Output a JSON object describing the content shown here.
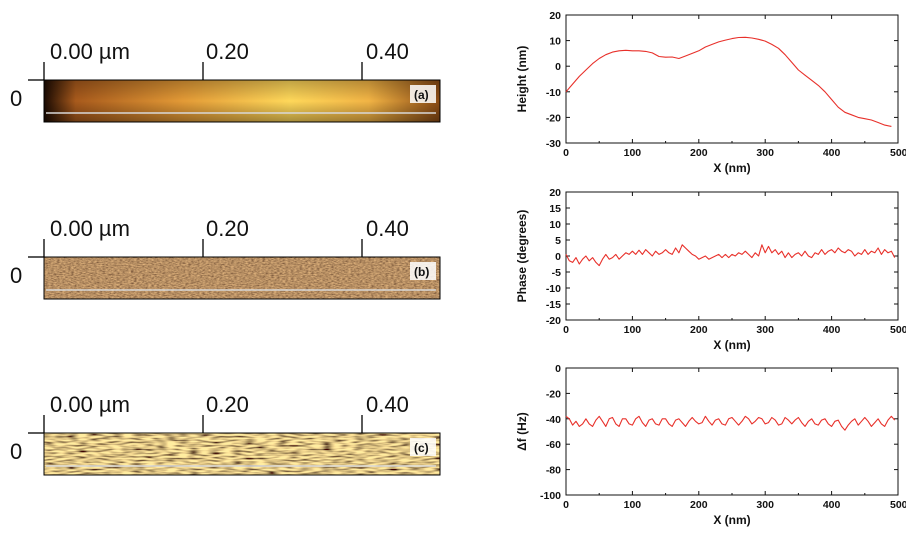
{
  "afm_images": [
    {
      "scale_labels": [
        "0.00 µm",
        "0.20",
        "0.40"
      ],
      "y_label": "0",
      "panel_label": "(a)",
      "colors": [
        "#7a3b0e",
        "#d88b2a",
        "#ffd667"
      ]
    },
    {
      "scale_labels": [
        "0.00 µm",
        "0.20",
        "0.40"
      ],
      "y_label": "0",
      "panel_label": "(b)",
      "colors": [
        "#3a1804",
        "#8a4d1a",
        "#d79a4d"
      ]
    },
    {
      "scale_labels": [
        "0.00 µm",
        "0.20",
        "0.40"
      ],
      "y_label": "0",
      "panel_label": "(c)",
      "colors": [
        "#4a2307",
        "#b3731e",
        "#ffe07a"
      ]
    }
  ],
  "chart_data": [
    {
      "type": "line",
      "xlabel": "X (nm)",
      "ylabel": "Height (nm)",
      "xlim": [
        0,
        500
      ],
      "ylim": [
        -30,
        20
      ],
      "xticks": [
        0,
        100,
        200,
        300,
        400,
        500
      ],
      "xtick_labels": [
        "0",
        "100",
        "200",
        "300",
        "400",
        "500"
      ],
      "yticks": [
        -30,
        -20,
        -10,
        0,
        10,
        20
      ],
      "ytick_labels": [
        "-30",
        "-20",
        "-10",
        "0",
        "10",
        "20"
      ],
      "line_color": "#e8302a",
      "x": [
        0,
        10,
        20,
        30,
        40,
        50,
        60,
        70,
        80,
        90,
        100,
        110,
        120,
        130,
        140,
        150,
        160,
        170,
        180,
        190,
        200,
        210,
        220,
        230,
        240,
        250,
        260,
        270,
        280,
        290,
        300,
        310,
        320,
        330,
        340,
        350,
        360,
        370,
        380,
        390,
        400,
        410,
        420,
        430,
        440,
        450,
        460,
        470,
        480,
        490
      ],
      "y": [
        -10,
        -7,
        -4,
        -1.5,
        1,
        3,
        4.5,
        5.5,
        6,
        6.2,
        6,
        6,
        5.8,
        5.2,
        3.8,
        3.5,
        3.6,
        3,
        4,
        5,
        6,
        7.5,
        8.5,
        9.5,
        10.2,
        10.8,
        11.2,
        11.3,
        11,
        10.5,
        9.8,
        8.5,
        7,
        4.5,
        1.5,
        -1.5,
        -3.5,
        -5.5,
        -7.5,
        -10,
        -13,
        -16,
        -18,
        -19,
        -20,
        -20.5,
        -21,
        -22,
        -23,
        -23.5
      ]
    },
    {
      "type": "line",
      "xlabel": "X (nm)",
      "ylabel": "Phase (degrees)",
      "xlim": [
        0,
        500
      ],
      "ylim": [
        -20,
        20
      ],
      "xticks": [
        0,
        100,
        200,
        300,
        400,
        500
      ],
      "xtick_labels": [
        "0",
        "100",
        "200",
        "300",
        "400",
        "500"
      ],
      "yticks": [
        -20,
        -15,
        -10,
        -5,
        0,
        5,
        10,
        15,
        20
      ],
      "ytick_labels": [
        "-20",
        "-15",
        "-10",
        "-5",
        "0",
        "5",
        "10",
        "15",
        "20"
      ],
      "line_color": "#e8302a",
      "x": [
        0,
        5,
        10,
        15,
        20,
        25,
        30,
        35,
        40,
        45,
        50,
        55,
        60,
        65,
        70,
        75,
        80,
        85,
        90,
        95,
        100,
        105,
        110,
        115,
        120,
        125,
        130,
        135,
        140,
        145,
        150,
        155,
        160,
        165,
        170,
        175,
        180,
        185,
        190,
        195,
        200,
        205,
        210,
        215,
        220,
        225,
        230,
        235,
        240,
        245,
        250,
        255,
        260,
        265,
        270,
        275,
        280,
        285,
        290,
        295,
        300,
        305,
        310,
        315,
        320,
        325,
        330,
        335,
        340,
        345,
        350,
        355,
        360,
        365,
        370,
        375,
        380,
        385,
        390,
        395,
        400,
        405,
        410,
        415,
        420,
        425,
        430,
        435,
        440,
        445,
        450,
        455,
        460,
        465,
        470,
        475,
        480,
        485,
        490,
        495
      ],
      "y": [
        0.5,
        -1.5,
        -2,
        -0.5,
        -2.5,
        -1,
        0,
        -1.5,
        -0.5,
        -2,
        -3,
        -1,
        0.5,
        -1,
        -0.5,
        0.5,
        -1,
        0,
        1,
        0.5,
        1.5,
        0.5,
        1.8,
        0.5,
        2,
        1,
        0,
        1.5,
        0.5,
        1,
        2,
        1,
        0.5,
        2.5,
        1,
        3.5,
        2.5,
        1.5,
        0.5,
        0,
        -1,
        -0.5,
        0,
        -1,
        -0.5,
        0,
        0.5,
        -0.5,
        0.5,
        -0.5,
        0.5,
        0,
        1,
        0.5,
        1.5,
        0.5,
        -0.5,
        1,
        0,
        3.5,
        1,
        3,
        1,
        2,
        0.5,
        1.5,
        -0.5,
        1,
        -0.5,
        0.5,
        1,
        0,
        1.5,
        0,
        -0.5,
        1,
        0.5,
        2,
        0.5,
        1.5,
        2,
        1,
        2.5,
        1.5,
        1,
        2,
        1.5,
        0,
        1,
        0.5,
        2,
        0.5,
        1.5,
        1,
        2.5,
        0.5,
        2,
        1,
        1.5,
        -0.5
      ]
    },
    {
      "type": "line",
      "xlabel": "X (nm)",
      "ylabel": "Δf (Hz)",
      "xlim": [
        0,
        500
      ],
      "ylim": [
        -100,
        0
      ],
      "xticks": [
        0,
        100,
        200,
        300,
        400,
        500
      ],
      "xtick_labels": [
        "0",
        "100",
        "200",
        "300",
        "400",
        "500"
      ],
      "yticks": [
        -100,
        -80,
        -60,
        -40,
        -20,
        0
      ],
      "ytick_labels": [
        "-100",
        "-80",
        "-60",
        "-40",
        "-20",
        "0"
      ],
      "line_color": "#e8302a",
      "x": [
        0,
        5,
        10,
        15,
        20,
        25,
        30,
        35,
        40,
        45,
        50,
        55,
        60,
        65,
        70,
        75,
        80,
        85,
        90,
        95,
        100,
        105,
        110,
        115,
        120,
        125,
        130,
        135,
        140,
        145,
        150,
        155,
        160,
        165,
        170,
        175,
        180,
        185,
        190,
        195,
        200,
        205,
        210,
        215,
        220,
        225,
        230,
        235,
        240,
        245,
        250,
        255,
        260,
        265,
        270,
        275,
        280,
        285,
        290,
        295,
        300,
        305,
        310,
        315,
        320,
        325,
        330,
        335,
        340,
        345,
        350,
        355,
        360,
        365,
        370,
        375,
        380,
        385,
        390,
        395,
        400,
        405,
        410,
        415,
        420,
        425,
        430,
        435,
        440,
        445,
        450,
        455,
        460,
        465,
        470,
        475,
        480,
        485,
        490,
        495
      ],
      "y": [
        -38,
        -40,
        -45,
        -42,
        -46,
        -44,
        -40,
        -44,
        -46,
        -41,
        -38,
        -42,
        -46,
        -40,
        -39,
        -44,
        -46,
        -40,
        -40,
        -44,
        -45,
        -40,
        -38,
        -43,
        -46,
        -41,
        -40,
        -44,
        -45,
        -40,
        -40,
        -44,
        -46,
        -41,
        -40,
        -43,
        -46,
        -42,
        -39,
        -42,
        -44,
        -43,
        -38,
        -42,
        -45,
        -41,
        -40,
        -44,
        -45,
        -40,
        -39,
        -42,
        -45,
        -42,
        -38,
        -40,
        -44,
        -42,
        -39,
        -40,
        -44,
        -43,
        -39,
        -41,
        -45,
        -44,
        -39,
        -41,
        -44,
        -41,
        -39,
        -43,
        -46,
        -42,
        -40,
        -44,
        -45,
        -41,
        -40,
        -44,
        -46,
        -42,
        -41,
        -46,
        -49,
        -45,
        -42,
        -40,
        -45,
        -42,
        -39,
        -42,
        -46,
        -43,
        -40,
        -44,
        -46,
        -41,
        -38,
        -41
      ]
    }
  ]
}
